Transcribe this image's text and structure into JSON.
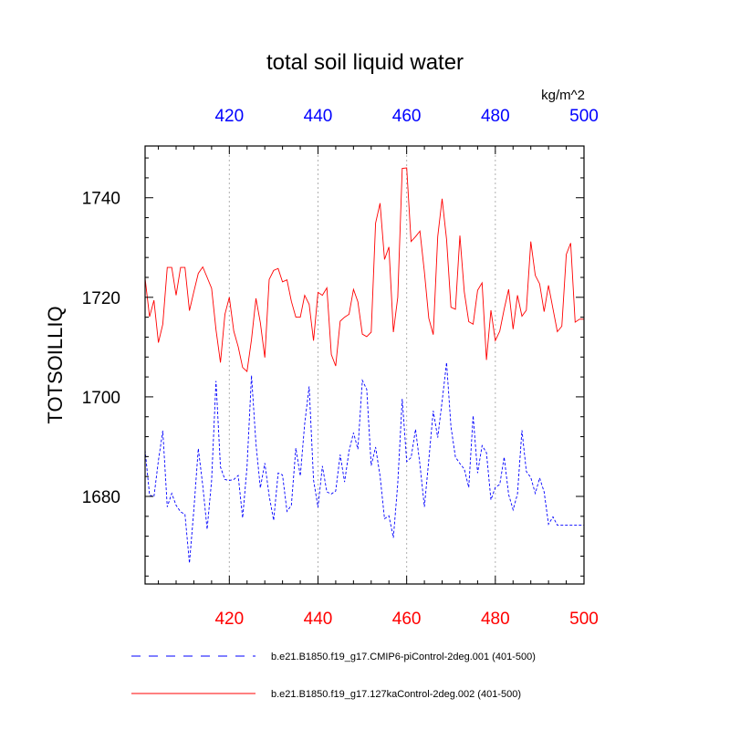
{
  "chart_data": {
    "type": "line",
    "title": "total soil liquid water",
    "units": "kg/m^2",
    "xlabel": "",
    "ylabel": "TOTSOILLIQ",
    "xlim": [
      401,
      500
    ],
    "ylim": [
      1662.4,
      1750.4
    ],
    "x_ticks_bottom": [
      "420",
      "440",
      "460",
      "480",
      "500"
    ],
    "x_ticks_top": [
      "420",
      "440",
      "460",
      "480",
      "500"
    ],
    "y_ticks": [
      "1680",
      "1700",
      "1720",
      "1740"
    ],
    "grid": "vertical dotted lines at major x ticks",
    "colors": {
      "bottom_ticks": "#ff0000",
      "top_ticks": "#0000ff",
      "series_control": "#ff0000",
      "series_pi": "#0000ff"
    },
    "series": [
      {
        "name": "b.e21.B1850.f19_g17.CMIP6-piControl-2deg.001 (401-500)",
        "color": "#0000ff",
        "style": "dashed",
        "x": [
          401,
          402,
          403,
          404,
          405,
          406,
          407,
          408,
          409,
          410,
          411,
          412,
          413,
          414,
          415,
          416,
          417,
          418,
          419,
          420,
          421,
          422,
          423,
          424,
          425,
          426,
          427,
          428,
          429,
          430,
          431,
          432,
          433,
          434,
          435,
          436,
          437,
          438,
          439,
          440,
          441,
          442,
          443,
          444,
          445,
          446,
          447,
          448,
          449,
          450,
          451,
          452,
          453,
          454,
          455,
          456,
          457,
          458,
          459,
          460,
          461,
          462,
          463,
          464,
          465,
          466,
          467,
          468,
          469,
          470,
          471,
          472,
          473,
          474,
          475,
          476,
          477,
          478,
          479,
          480,
          481,
          482,
          483,
          484,
          485,
          486,
          487,
          488,
          489,
          490,
          491,
          492,
          493,
          494,
          495,
          496,
          497,
          498,
          499,
          500
        ],
        "values": [
          1689.3,
          1680.3,
          1679.9,
          1687.2,
          1693.2,
          1677.9,
          1680.6,
          1678.2,
          1676.9,
          1676.4,
          1666.6,
          1677.2,
          1689.6,
          1682.2,
          1673.4,
          1683.2,
          1703.2,
          1685.9,
          1683.4,
          1683.2,
          1683.4,
          1684.2,
          1675.7,
          1685.9,
          1704.3,
          1690.6,
          1681.7,
          1686.7,
          1680.1,
          1675.2,
          1684.7,
          1684.3,
          1677.0,
          1678.2,
          1689.7,
          1684.1,
          1694.6,
          1702.1,
          1683.3,
          1677.8,
          1686.1,
          1680.9,
          1680.5,
          1681.1,
          1688.4,
          1682.9,
          1689.1,
          1692.8,
          1689.5,
          1703.3,
          1701.5,
          1686.2,
          1689.9,
          1684.1,
          1675.5,
          1676.1,
          1671.7,
          1682.6,
          1699.6,
          1687.0,
          1687.8,
          1693.5,
          1686.4,
          1677.9,
          1687.3,
          1697.2,
          1691.8,
          1699.1,
          1706.9,
          1694.0,
          1687.9,
          1686.6,
          1685.5,
          1681.8,
          1696.2,
          1684.7,
          1690.2,
          1688.8,
          1679.3,
          1681.8,
          1682.4,
          1687.9,
          1680.4,
          1677.3,
          1680.5,
          1693.3,
          1685.0,
          1683.8,
          1680.6,
          1683.7,
          1680.9,
          1674.4,
          1675.9,
          1674.2,
          1674.2,
          1674.2,
          1674.2,
          1674.2,
          1674.2,
          1674.2
        ]
      },
      {
        "name": "b.e21.B1850.f19_g17.127kaControl-2deg.002 (401-500)",
        "color": "#ff0000",
        "style": "solid",
        "x": [
          401,
          402,
          403,
          404,
          405,
          406,
          407,
          408,
          409,
          410,
          411,
          412,
          413,
          414,
          415,
          416,
          417,
          418,
          419,
          420,
          421,
          422,
          423,
          424,
          425,
          426,
          427,
          428,
          429,
          430,
          431,
          432,
          433,
          434,
          435,
          436,
          437,
          438,
          439,
          440,
          441,
          442,
          443,
          444,
          445,
          446,
          447,
          448,
          449,
          450,
          451,
          452,
          453,
          454,
          455,
          456,
          457,
          458,
          459,
          460,
          461,
          462,
          463,
          464,
          465,
          466,
          467,
          468,
          469,
          470,
          471,
          472,
          473,
          474,
          475,
          476,
          477,
          478,
          479,
          480,
          481,
          482,
          483,
          484,
          485,
          486,
          487,
          488,
          489,
          490,
          491,
          492,
          493,
          494,
          495,
          496,
          497,
          498,
          499,
          500
        ],
        "values": [
          1723.8,
          1716.1,
          1719.4,
          1710.9,
          1714.6,
          1726.0,
          1726.0,
          1720.4,
          1726.0,
          1726.0,
          1717.3,
          1721.1,
          1724.8,
          1726.1,
          1724.0,
          1721.8,
          1713.5,
          1706.9,
          1716.6,
          1720.0,
          1713.2,
          1710.1,
          1705.9,
          1705.1,
          1711.5,
          1719.8,
          1714.9,
          1707.9,
          1723.6,
          1725.4,
          1725.8,
          1723.1,
          1723.5,
          1719.2,
          1716.0,
          1716.0,
          1720.4,
          1718.6,
          1711.3,
          1721.0,
          1720.4,
          1721.9,
          1708.5,
          1706.2,
          1715.2,
          1716.0,
          1716.6,
          1721.6,
          1719.1,
          1712.6,
          1712.1,
          1713.0,
          1734.9,
          1738.9,
          1727.6,
          1730.1,
          1713.0,
          1720.0,
          1745.9,
          1746.0,
          1731.2,
          1732.2,
          1733.3,
          1725.1,
          1715.8,
          1712.5,
          1732.2,
          1739.8,
          1731.6,
          1718.0,
          1717.6,
          1732.4,
          1721.1,
          1715.1,
          1714.6,
          1721.4,
          1722.9,
          1707.4,
          1717.4,
          1711.3,
          1713.2,
          1717.6,
          1721.6,
          1713.6,
          1720.4,
          1716.2,
          1717.4,
          1731.2,
          1724.4,
          1722.7,
          1717.1,
          1722.4,
          1717.7,
          1713.1,
          1714.2,
          1728.6,
          1730.9,
          1715.0,
          1715.6,
          1715.6
        ]
      }
    ]
  }
}
